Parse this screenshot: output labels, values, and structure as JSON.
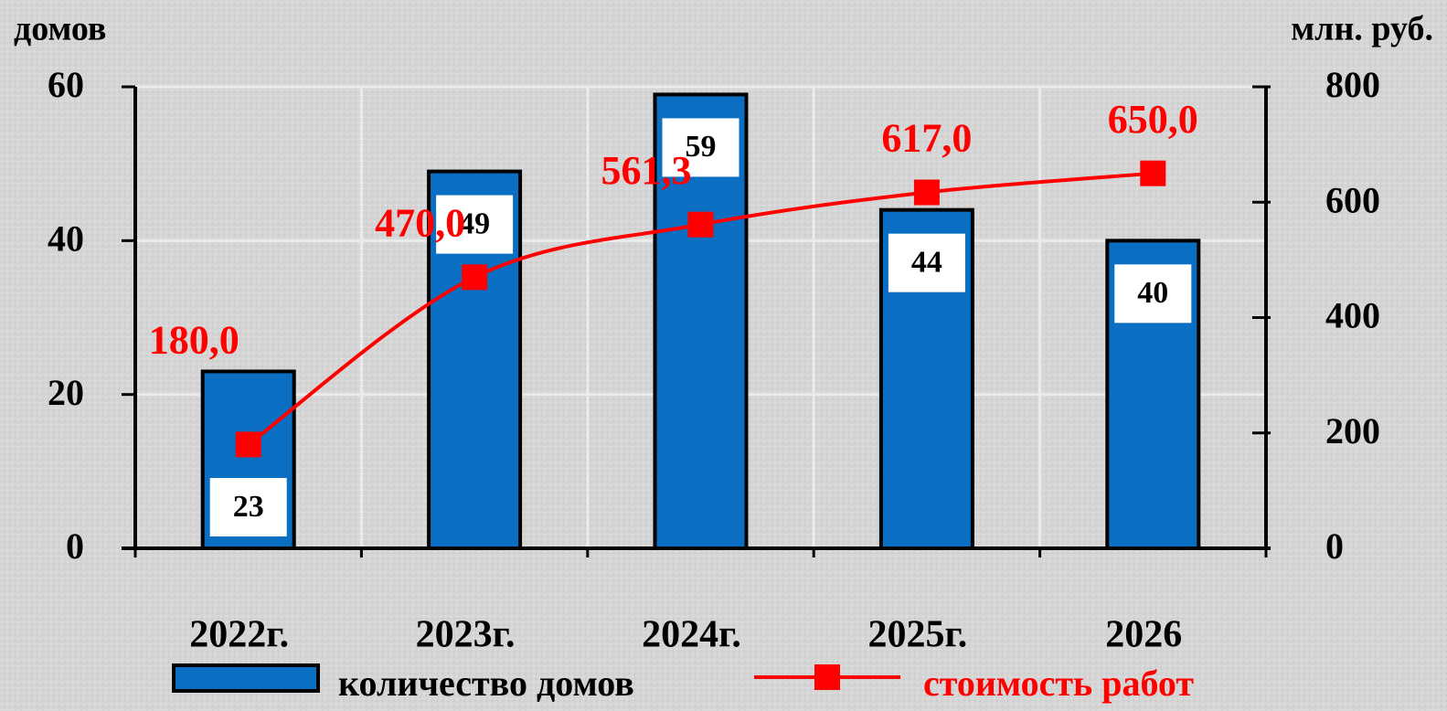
{
  "chart_data": {
    "type": "bar",
    "categories": [
      "2022г.",
      "2023г.",
      "2024г.",
      "2025г.",
      "2026"
    ],
    "y_label": "домов",
    "y2_label": "млн. руб.",
    "ylim": [
      0,
      60
    ],
    "yticks": [
      0,
      20,
      40,
      60
    ],
    "y2lim": [
      0,
      800
    ],
    "y2ticks": [
      0,
      200,
      400,
      600,
      800
    ],
    "grid": true,
    "legend": "bottom",
    "series": [
      {
        "name": "количество домов",
        "type": "bar",
        "color": "#0a6fc2",
        "values": [
          23,
          49,
          59,
          44,
          40
        ]
      },
      {
        "name": "стоимость работ",
        "type": "line",
        "axis": "y2",
        "color": "#ff0000",
        "values": [
          180,
          470,
          561.3,
          617,
          650
        ],
        "value_labels": [
          "180,0",
          "470,0",
          "561,3",
          "617,0",
          "650,0"
        ]
      }
    ]
  }
}
